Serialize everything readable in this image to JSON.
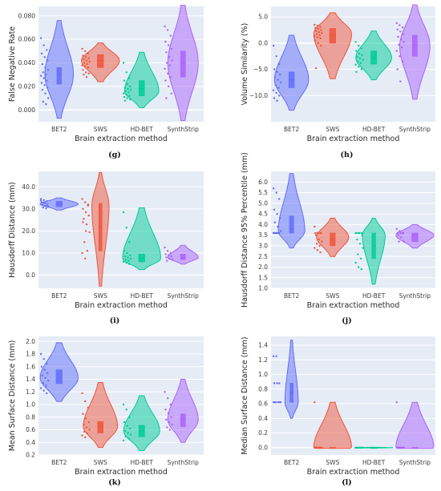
{
  "figure": {
    "colors": {
      "BET2": "#636efa",
      "SWS": "#ef553b",
      "HD-BET": "#00cc96",
      "SynthStrip": "#ab63fa",
      "plot_bg": "#e5ecf6"
    }
  },
  "chart_data": [
    {
      "type": "violin",
      "caption": "(g)",
      "ylabel": "False Negative Rate",
      "xlabel": "Brain extraction method",
      "categories": [
        "BET2",
        "SWS",
        "HD-BET",
        "SynthStrip"
      ],
      "ylim": [
        -0.01,
        0.088
      ],
      "yticks": [
        0,
        0.02,
        0.04,
        0.06,
        0.08
      ],
      "ytick_labels": [
        "0.000",
        "0.020",
        "0.040",
        "0.060",
        "0.080"
      ],
      "series": [
        {
          "name": "BET2",
          "min": -0.007,
          "q1": 0.022,
          "median": 0.03,
          "q3": 0.036,
          "max": 0.076,
          "peak": 0.03,
          "width": 0.75,
          "points": [
            0.061,
            0.055,
            0.051,
            0.048,
            0.045,
            0.042,
            0.039,
            0.036,
            0.034,
            0.032,
            0.03,
            0.029,
            0.027,
            0.025,
            0.023,
            0.021,
            0.019,
            0.017,
            0.014,
            0.01,
            0.007,
            0.005
          ]
        },
        {
          "name": "SWS",
          "min": 0.024,
          "q1": 0.036,
          "median": 0.042,
          "q3": 0.047,
          "max": 0.057,
          "peak": 0.042,
          "width": 1.0,
          "points": [
            0.052,
            0.05,
            0.048,
            0.046,
            0.045,
            0.044,
            0.043,
            0.042,
            0.041,
            0.04,
            0.039,
            0.038,
            0.037,
            0.036,
            0.034,
            0.032,
            0.031,
            0.03,
            0.028
          ]
        },
        {
          "name": "HD-BET",
          "min": 0.002,
          "q1": 0.012,
          "median": 0.018,
          "q3": 0.025,
          "max": 0.049,
          "peak": 0.016,
          "width": 0.9,
          "points": [
            0.04,
            0.032,
            0.027,
            0.025,
            0.022,
            0.02,
            0.019,
            0.018,
            0.017,
            0.016,
            0.015,
            0.014,
            0.013,
            0.012,
            0.011,
            0.01,
            0.009,
            0.008
          ]
        },
        {
          "name": "SynthStrip",
          "min": -0.009,
          "q1": 0.028,
          "median": 0.04,
          "q3": 0.05,
          "max": 0.089,
          "peak": 0.04,
          "width": 0.8,
          "points": [
            0.071,
            0.068,
            0.063,
            0.058,
            0.055,
            0.052,
            0.049,
            0.045,
            0.042,
            0.04,
            0.038,
            0.035,
            0.031,
            0.028,
            0.025,
            0.02,
            0.014,
            0.01
          ]
        }
      ]
    },
    {
      "type": "violin",
      "caption": "(h)",
      "ylabel": "Volume Similarity (%)",
      "xlabel": "Brain extraction method",
      "categories": [
        "BET2",
        "SWS",
        "HD-BET",
        "SynthStrip"
      ],
      "ylim": [
        -15,
        7
      ],
      "yticks": [
        -10,
        -5,
        0,
        5
      ],
      "ytick_labels": [
        "−10.0",
        "−5.0",
        "0.0",
        "5.0"
      ],
      "series": [
        {
          "name": "BET2",
          "min": -12.8,
          "q1": -8.5,
          "median": -7.0,
          "q3": -5.5,
          "max": 1.5,
          "peak": -7.0,
          "width": 0.9,
          "points": [
            -0.5,
            -2.5,
            -4.0,
            -5.0,
            -5.5,
            -6.0,
            -6.5,
            -7.0,
            -7.5,
            -8.0,
            -8.5,
            -9.0,
            -9.5,
            -10.0,
            -10.5,
            -11.0
          ]
        },
        {
          "name": "SWS",
          "min": -6.8,
          "q1": 0.0,
          "median": 1.5,
          "q3": 2.8,
          "max": 5.8,
          "peak": 1.8,
          "width": 1.0,
          "points": [
            3.5,
            3.3,
            3.1,
            2.9,
            2.7,
            2.5,
            2.3,
            2.1,
            1.9,
            1.7,
            1.5,
            1.3,
            1.1,
            0.9,
            0.5,
            0.0,
            -0.5,
            -4.8
          ]
        },
        {
          "name": "HD-BET",
          "min": -7.0,
          "q1": -4.0,
          "median": -2.8,
          "q3": -1.5,
          "max": 2.3,
          "peak": -2.8,
          "width": 0.95,
          "points": [
            0.2,
            -0.5,
            -1.0,
            -1.5,
            -2.0,
            -2.3,
            -2.6,
            -2.9,
            -3.2,
            -3.5,
            -3.8,
            -4.1,
            -4.5,
            -5.0,
            -5.5
          ]
        },
        {
          "name": "SynthStrip",
          "min": -10.7,
          "q1": -2.5,
          "median": -0.5,
          "q3": 1.5,
          "max": 7.3,
          "peak": -0.5,
          "width": 0.8,
          "points": [
            3.8,
            3.4,
            3.0,
            2.6,
            2.2,
            1.7,
            1.2,
            0.7,
            0.2,
            -0.3,
            -0.8,
            -1.5,
            -2.5,
            -3.5,
            -5.0,
            -7.3
          ]
        }
      ]
    },
    {
      "type": "violin",
      "caption": "(i)",
      "ylabel": "Hausdorff Distance (mm)",
      "xlabel": "Brain extraction method",
      "categories": [
        "BET2",
        "SWS",
        "HD-BET",
        "SynthStrip"
      ],
      "ylim": [
        -6,
        47
      ],
      "yticks": [
        0,
        10,
        20,
        30,
        40
      ],
      "ytick_labels": [
        "0.0",
        "10.0",
        "20.0",
        "30.0",
        "40.0"
      ],
      "series": [
        {
          "name": "BET2",
          "min": 29.5,
          "q1": 31.0,
          "median": 32.2,
          "q3": 33.5,
          "max": 35.0,
          "peak": 32.2,
          "width": 1.0,
          "points": [
            34.5,
            34.0,
            33.5,
            33.0,
            32.6,
            32.2,
            31.8,
            31.4,
            31.0,
            30.6,
            30.2,
            33.8,
            32.9,
            31.2
          ]
        },
        {
          "name": "SWS",
          "min": -5.0,
          "q1": 11.0,
          "median": 22.0,
          "q3": 32.5,
          "max": 46.5,
          "peak": 31.5,
          "width": 0.45,
          "points": [
            34.5,
            33.0,
            31.5,
            30.0,
            28.5,
            27.0,
            25.5,
            23.0,
            19.5,
            15.0,
            11.0,
            10.0,
            7.5,
            32.0,
            24.0,
            20.0
          ]
        },
        {
          "name": "HD-BET",
          "min": 2.5,
          "q1": 6.0,
          "median": 7.5,
          "q3": 9.5,
          "max": 30.5,
          "peak": 7.5,
          "width": 1.0,
          "points": [
            28.5,
            21.5,
            15.0,
            11.0,
            10.0,
            9.0,
            8.5,
            8.0,
            7.5,
            7.0,
            6.5,
            6.0,
            5.5,
            5.0
          ]
        },
        {
          "name": "SynthStrip",
          "min": 5.0,
          "q1": 7.0,
          "median": 8.0,
          "q3": 9.5,
          "max": 13.5,
          "peak": 8.0,
          "width": 0.8,
          "points": [
            12.5,
            11.0,
            10.0,
            9.5,
            9.0,
            8.5,
            8.0,
            7.5,
            7.0,
            6.5
          ]
        }
      ]
    },
    {
      "type": "violin",
      "caption": "(j)",
      "ylabel": "Hausdorff Distance 95% Percentile (mm)",
      "xlabel": "Brain extraction method",
      "categories": [
        "BET2",
        "SWS",
        "HD-BET",
        "SynthStrip"
      ],
      "ylim": [
        1,
        6.5
      ],
      "yticks": [
        1,
        1.5,
        2,
        2.5,
        3,
        3.5,
        4,
        4.5,
        5,
        5.5,
        6
      ],
      "ytick_labels": [
        "1.0",
        "1.5",
        "2.0",
        "2.5",
        "3.0",
        "3.5",
        "4.0",
        "4.5",
        "5.0",
        "5.5",
        "6.0"
      ],
      "series": [
        {
          "name": "BET2",
          "min": 2.9,
          "q1": 3.6,
          "median": 3.8,
          "q3": 4.4,
          "max": 6.4,
          "peak": 3.7,
          "width": 0.7,
          "points": [
            5.7,
            5.5,
            5.2,
            4.7,
            4.5,
            4.3,
            4.1,
            3.9,
            3.7,
            3.6,
            3.6,
            3.6,
            3.6,
            3.6,
            3.6,
            3.6
          ]
        },
        {
          "name": "SWS",
          "min": 2.5,
          "q1": 3.0,
          "median": 3.3,
          "q3": 3.6,
          "max": 4.3,
          "peak": 3.4,
          "width": 0.85,
          "points": [
            3.9,
            3.6,
            3.6,
            3.6,
            3.6,
            3.6,
            3.5,
            3.3,
            3.2,
            3.1,
            3.0,
            2.9,
            2.8,
            2.7
          ]
        },
        {
          "name": "HD-BET",
          "min": 1.2,
          "q1": 2.4,
          "median": 3.0,
          "q3": 3.6,
          "max": 4.3,
          "peak": 3.5,
          "width": 0.6,
          "points": [
            3.6,
            3.6,
            3.6,
            3.6,
            3.6,
            3.5,
            3.3,
            3.1,
            2.9,
            2.6,
            2.4,
            2.2,
            2.0,
            1.9
          ]
        },
        {
          "name": "SynthStrip",
          "min": 2.9,
          "q1": 3.2,
          "median": 3.5,
          "q3": 3.6,
          "max": 4.0,
          "peak": 3.5,
          "width": 1.0,
          "points": [
            3.8,
            3.7,
            3.6,
            3.6,
            3.6,
            3.6,
            3.5,
            3.4,
            3.2,
            3.2
          ]
        }
      ]
    },
    {
      "type": "violin",
      "caption": "(k)",
      "ylabel": "Mean Surface Distance (mm)",
      "xlabel": "Brain extraction method",
      "categories": [
        "BET2",
        "SWS",
        "HD-BET",
        "SynthStrip"
      ],
      "ylim": [
        0.2,
        2.08
      ],
      "yticks": [
        0.2,
        0.4,
        0.6,
        0.8,
        1,
        1.2,
        1.4,
        1.6,
        1.8,
        2
      ],
      "ytick_labels": [
        "0.2",
        "0.4",
        "0.6",
        "0.8",
        "1.0",
        "1.2",
        "1.4",
        "1.6",
        "1.8",
        "2.0"
      ],
      "series": [
        {
          "name": "BET2",
          "min": 1.05,
          "q1": 1.33,
          "median": 1.42,
          "q3": 1.55,
          "max": 1.98,
          "peak": 1.42,
          "width": 1.0,
          "points": [
            1.8,
            1.72,
            1.65,
            1.6,
            1.55,
            1.5,
            1.46,
            1.42,
            1.38,
            1.34,
            1.3,
            1.26,
            1.22,
            1.18
          ]
        },
        {
          "name": "SWS",
          "min": 0.32,
          "q1": 0.55,
          "median": 0.65,
          "q3": 0.73,
          "max": 1.35,
          "peak": 0.65,
          "width": 0.9,
          "points": [
            1.18,
            1.05,
            0.95,
            0.85,
            0.78,
            0.72,
            0.68,
            0.64,
            0.6,
            0.57,
            0.54,
            0.51,
            0.48
          ]
        },
        {
          "name": "HD-BET",
          "min": 0.27,
          "q1": 0.49,
          "median": 0.58,
          "q3": 0.67,
          "max": 1.14,
          "peak": 0.58,
          "width": 0.95,
          "points": [
            1.0,
            0.92,
            0.8,
            0.72,
            0.66,
            0.62,
            0.58,
            0.55,
            0.52,
            0.49,
            0.46,
            0.43
          ]
        },
        {
          "name": "SynthStrip",
          "min": 0.4,
          "q1": 0.65,
          "median": 0.76,
          "q3": 0.85,
          "max": 1.4,
          "peak": 0.76,
          "width": 0.8,
          "points": [
            1.2,
            1.1,
            1.0,
            0.92,
            0.86,
            0.8,
            0.76,
            0.72,
            0.68,
            0.64,
            0.6
          ]
        }
      ]
    },
    {
      "type": "violin",
      "caption": "(l)",
      "ylabel": "Median Surface Distance (mm)",
      "xlabel": "Brain extraction method",
      "categories": [
        "BET2",
        "SWS",
        "HD-BET",
        "SynthStrip"
      ],
      "ylim": [
        -0.1,
        1.52
      ],
      "yticks": [
        0,
        0.2,
        0.4,
        0.6,
        0.8,
        1,
        1.2,
        1.4
      ],
      "ytick_labels": [
        "0.0",
        "0.2",
        "0.4",
        "0.6",
        "0.8",
        "1.0",
        "1.2",
        "1.4"
      ],
      "series": [
        {
          "name": "BET2",
          "min": 0.4,
          "q1": 0.62,
          "median": 0.75,
          "q3": 0.88,
          "max": 1.47,
          "peak": 0.62,
          "width": 0.35,
          "points": [
            1.25,
            1.25,
            0.88,
            0.88,
            0.88,
            0.62,
            0.62,
            0.62,
            0.62,
            0.62,
            0.62,
            0.62
          ]
        },
        {
          "name": "SWS",
          "min": -0.01,
          "q1": 0.0,
          "median": 0.0,
          "q3": 0.0,
          "max": 0.62,
          "peak": 0.0,
          "width": 1.0,
          "points": [
            0.62,
            0,
            0,
            0,
            0,
            0,
            0,
            0,
            0,
            0,
            0,
            0
          ]
        },
        {
          "name": "HD-BET",
          "min": -0.005,
          "q1": 0.0,
          "median": 0.0,
          "q3": 0.0,
          "max": 0.005,
          "peak": 0.0,
          "width": 1.0,
          "points": [
            0,
            0,
            0,
            0,
            0,
            0,
            0,
            0,
            0,
            0,
            0,
            0
          ]
        },
        {
          "name": "SynthStrip",
          "min": -0.01,
          "q1": 0.0,
          "median": 0.0,
          "q3": 0.0,
          "max": 0.62,
          "peak": 0.0,
          "width": 1.0,
          "points": [
            0.62,
            0,
            0,
            0,
            0,
            0,
            0,
            0,
            0,
            0,
            0,
            0
          ]
        }
      ]
    }
  ]
}
